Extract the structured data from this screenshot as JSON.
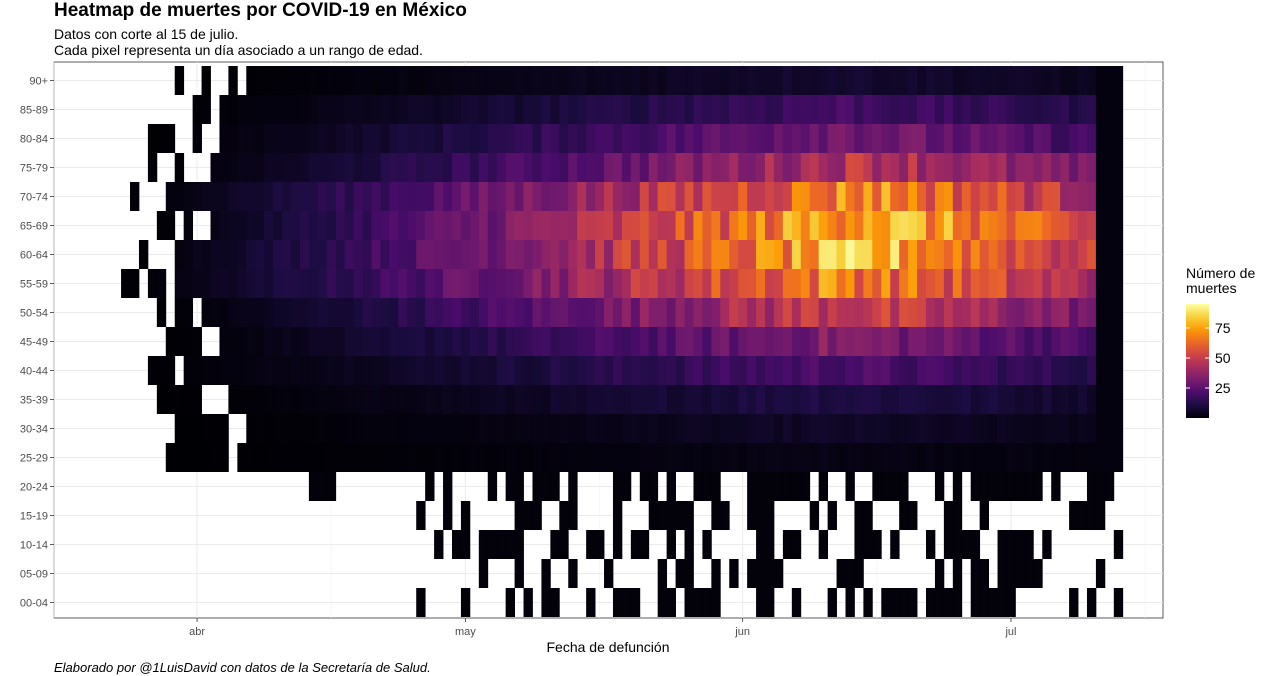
{
  "title": "Heatmap de muertes por COVID-19 en México",
  "subtitle_line1": "Datos con corte al 15 de julio.",
  "subtitle_line2": "Cada pixel representa un día asociado a un rango de edad.",
  "caption": "Elaborado por @1LuisDavid con datos de la Secretaría de Salud.",
  "legend": {
    "title_line1": "Número de",
    "title_line2": "muertes",
    "ticks": [
      25,
      50,
      75
    ],
    "range": [
      0,
      95
    ],
    "colors": [
      "#000004",
      "#1b0c41",
      "#4a0c6b",
      "#781c6d",
      "#a52c60",
      "#cf4446",
      "#ed6925",
      "#fb9b06",
      "#f7d13d",
      "#fcffa4"
    ]
  },
  "chart_data": {
    "type": "heatmap",
    "xlabel": "Fecha de defunción",
    "ylabel": "",
    "x_ticks": [
      "abr",
      "may",
      "jun",
      "jul"
    ],
    "x_range": [
      "2020-03-18",
      "2020-07-13"
    ],
    "y_categories": [
      "00-04",
      "05-09",
      "10-14",
      "15-19",
      "20-24",
      "25-29",
      "30-34",
      "35-39",
      "40-44",
      "45-49",
      "50-54",
      "55-59",
      "60-64",
      "65-69",
      "70-74",
      "75-79",
      "80-84",
      "85-89",
      "90+"
    ],
    "value_range": [
      1,
      95
    ],
    "series": [
      {
        "age": "00-04",
        "start": "2020-04-25",
        "peak_date": "2020-06-10",
        "peak": 1,
        "sparse": true
      },
      {
        "age": "05-09",
        "start": "2020-05-01",
        "peak_date": "2020-06-10",
        "peak": 1,
        "sparse": true
      },
      {
        "age": "10-14",
        "start": "2020-04-28",
        "peak_date": "2020-06-10",
        "peak": 1,
        "sparse": true
      },
      {
        "age": "15-19",
        "start": "2020-04-22",
        "peak_date": "2020-06-10",
        "peak": 1,
        "sparse": true
      },
      {
        "age": "20-24",
        "start": "2020-04-14",
        "peak_date": "2020-06-10",
        "peak": 2,
        "sparse": true
      },
      {
        "age": "25-29",
        "start": "2020-03-29",
        "peak_date": "2020-06-10",
        "peak": 3,
        "sparse": false
      },
      {
        "age": "30-34",
        "start": "2020-03-30",
        "peak_date": "2020-06-10",
        "peak": 6,
        "sparse": false
      },
      {
        "age": "35-39",
        "start": "2020-03-28",
        "peak_date": "2020-06-10",
        "peak": 12,
        "sparse": false
      },
      {
        "age": "40-44",
        "start": "2020-03-25",
        "peak_date": "2020-06-12",
        "peak": 22,
        "sparse": false
      },
      {
        "age": "45-49",
        "start": "2020-03-28",
        "peak_date": "2020-06-12",
        "peak": 34,
        "sparse": false
      },
      {
        "age": "50-54",
        "start": "2020-03-28",
        "peak_date": "2020-06-12",
        "peak": 52,
        "sparse": false
      },
      {
        "age": "55-59",
        "start": "2020-03-24",
        "peak_date": "2020-06-12",
        "peak": 70,
        "sparse": false
      },
      {
        "age": "60-64",
        "start": "2020-03-24",
        "peak_date": "2020-06-15",
        "peak": 80,
        "sparse": false
      },
      {
        "age": "65-69",
        "start": "2020-03-27",
        "peak_date": "2020-06-15",
        "peak": 82,
        "sparse": false
      },
      {
        "age": "70-74",
        "start": "2020-03-24",
        "peak_date": "2020-06-15",
        "peak": 72,
        "sparse": false
      },
      {
        "age": "75-79",
        "start": "2020-03-27",
        "peak_date": "2020-06-15",
        "peak": 48,
        "sparse": false
      },
      {
        "age": "80-84",
        "start": "2020-03-27",
        "peak_date": "2020-06-12",
        "peak": 32,
        "sparse": false
      },
      {
        "age": "85-89",
        "start": "2020-03-28",
        "peak_date": "2020-06-12",
        "peak": 20,
        "sparse": false
      },
      {
        "age": "90+",
        "start": "2020-03-30",
        "peak_date": "2020-06-12",
        "peak": 8,
        "sparse": false
      }
    ]
  }
}
